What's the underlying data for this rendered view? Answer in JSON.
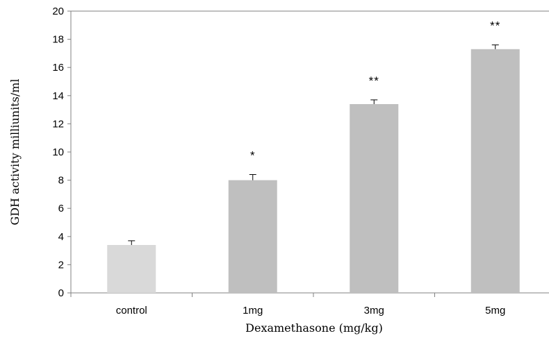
{
  "chart_data": {
    "type": "bar",
    "title": "",
    "xlabel": "Dexamethasone (mg/kg)",
    "ylabel": "GDH activity milliunits/ml",
    "ylim": [
      0,
      20
    ],
    "yticks": [
      "0",
      "2",
      "4",
      "6",
      "8",
      "10",
      "12",
      "14",
      "16",
      "18",
      "20"
    ],
    "categories": [
      "control",
      "1mg",
      "3mg",
      "5mg"
    ],
    "values": [
      3.4,
      8.0,
      13.4,
      17.3
    ],
    "errors": [
      0.3,
      0.4,
      0.3,
      0.3
    ],
    "significance": [
      "",
      "*",
      "**",
      "**"
    ],
    "bar_colors": [
      "#d9d9d9",
      "#bfbfbf",
      "#bfbfbf",
      "#bfbfbf"
    ],
    "grid": false,
    "legend": "none"
  }
}
